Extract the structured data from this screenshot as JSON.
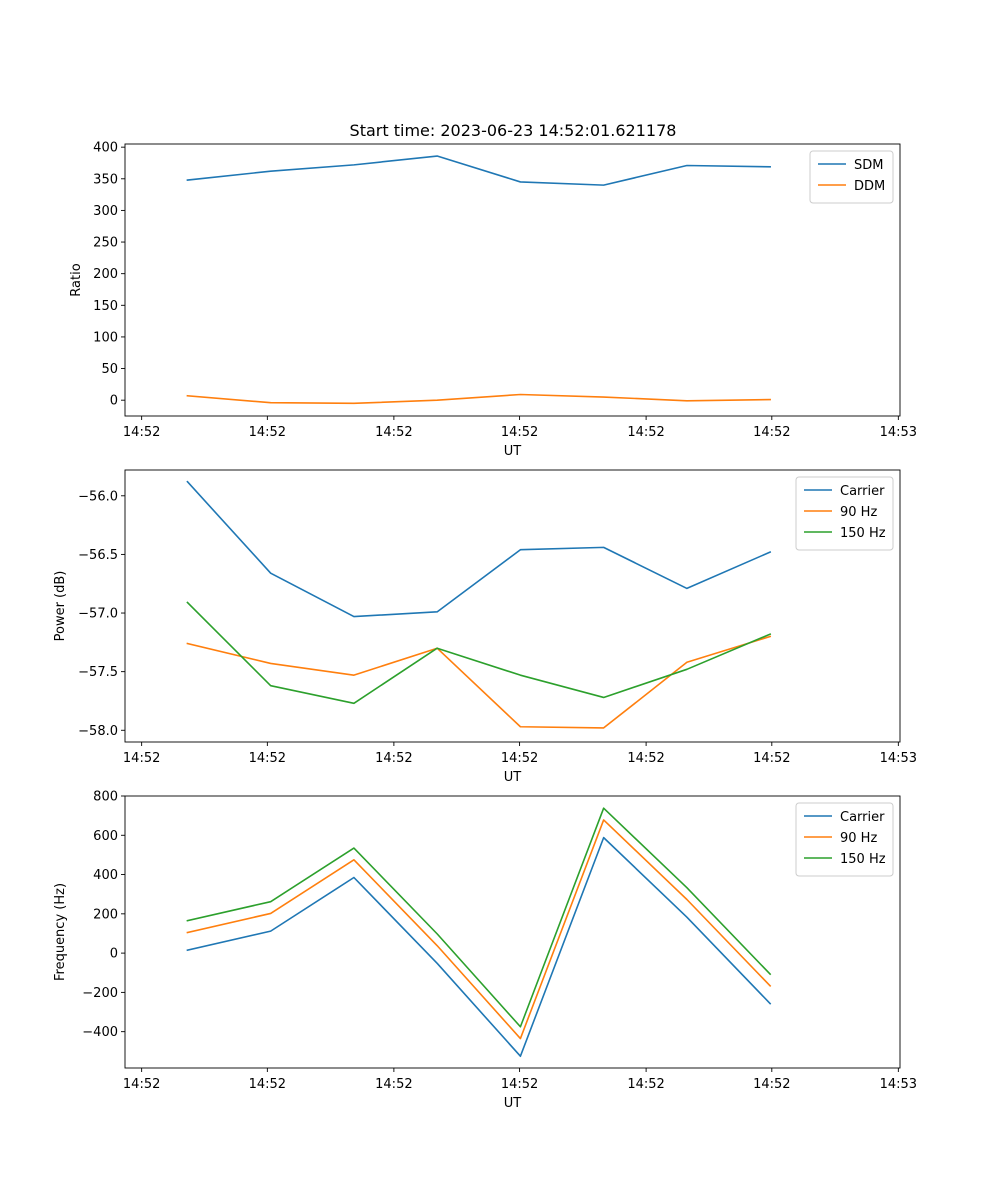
{
  "figure": {
    "title": "Start time: 2023-06-23 14:52:01.621178"
  },
  "chart_data": [
    {
      "type": "line",
      "xlabel": "UT",
      "ylabel": "Ratio",
      "x": [
        1,
        2,
        3,
        4,
        5,
        6,
        7,
        8
      ],
      "xlim": [
        0.25,
        9.56
      ],
      "xticks": [
        0.45,
        1.96,
        3.48,
        4.99,
        6.51,
        8.02,
        9.54
      ],
      "xtick_labels": [
        "14:52",
        "14:52",
        "14:52",
        "14:52",
        "14:52",
        "14:52",
        "14:53"
      ],
      "ylim": [
        -25,
        405
      ],
      "yticks": [
        0,
        50,
        100,
        150,
        200,
        250,
        300,
        350,
        400
      ],
      "ytick_labels": [
        "0",
        "50",
        "100",
        "150",
        "200",
        "250",
        "300",
        "350",
        "400"
      ],
      "legend": "top-right",
      "series": [
        {
          "name": "SDM",
          "color": "#1f77b4",
          "values": [
            348,
            362,
            372,
            386,
            345,
            340,
            371,
            369
          ]
        },
        {
          "name": "DDM",
          "color": "#ff7f0e",
          "values": [
            7,
            -4,
            -5,
            0,
            9,
            5,
            -1,
            1
          ]
        }
      ]
    },
    {
      "type": "line",
      "xlabel": "UT",
      "ylabel": "Power (dB)",
      "x": [
        1,
        2,
        3,
        4,
        5,
        6,
        7,
        8
      ],
      "xlim": [
        0.25,
        9.56
      ],
      "xticks": [
        0.45,
        1.96,
        3.48,
        4.99,
        6.51,
        8.02,
        9.54
      ],
      "xtick_labels": [
        "14:52",
        "14:52",
        "14:52",
        "14:52",
        "14:52",
        "14:52",
        "14:53"
      ],
      "ylim": [
        -58.1,
        -55.78
      ],
      "yticks": [
        -58.0,
        -57.5,
        -57.0,
        -56.5,
        -56.0
      ],
      "ytick_labels": [
        "−58.0",
        "−57.5",
        "−57.0",
        "−56.5",
        "−56.0"
      ],
      "legend": "top-right",
      "series": [
        {
          "name": "Carrier",
          "color": "#1f77b4",
          "values": [
            -55.88,
            -56.66,
            -57.03,
            -56.99,
            -56.46,
            -56.44,
            -56.79,
            -56.48
          ]
        },
        {
          "name": "90 Hz",
          "color": "#ff7f0e",
          "values": [
            -57.26,
            -57.43,
            -57.53,
            -57.3,
            -57.97,
            -57.98,
            -57.42,
            -57.2
          ]
        },
        {
          "name": "150 Hz",
          "color": "#2ca02c",
          "values": [
            -56.91,
            -57.62,
            -57.77,
            -57.3,
            -57.53,
            -57.72,
            -57.48,
            -57.18
          ]
        }
      ]
    },
    {
      "type": "line",
      "xlabel": "UT",
      "ylabel": "Frequency (Hz)",
      "x": [
        1,
        2,
        3,
        4,
        5,
        6,
        7,
        8
      ],
      "xlim": [
        0.25,
        9.56
      ],
      "xticks": [
        0.45,
        1.96,
        3.48,
        4.99,
        6.51,
        8.02,
        9.54
      ],
      "xtick_labels": [
        "14:52",
        "14:52",
        "14:52",
        "14:52",
        "14:52",
        "14:52",
        "14:53"
      ],
      "ylim": [
        -585,
        800
      ],
      "yticks": [
        -400,
        -200,
        0,
        200,
        400,
        600,
        800
      ],
      "ytick_labels": [
        "−400",
        "−200",
        "0",
        "200",
        "400",
        "600",
        "800"
      ],
      "legend": "top-right",
      "series": [
        {
          "name": "Carrier",
          "color": "#1f77b4",
          "values": [
            15,
            112,
            385,
            -52,
            -525,
            588,
            183,
            -257
          ]
        },
        {
          "name": "90 Hz",
          "color": "#ff7f0e",
          "values": [
            105,
            202,
            475,
            38,
            -435,
            678,
            273,
            -167
          ]
        },
        {
          "name": "150 Hz",
          "color": "#2ca02c",
          "values": [
            165,
            262,
            535,
            98,
            -375,
            738,
            333,
            -107
          ]
        }
      ]
    }
  ]
}
